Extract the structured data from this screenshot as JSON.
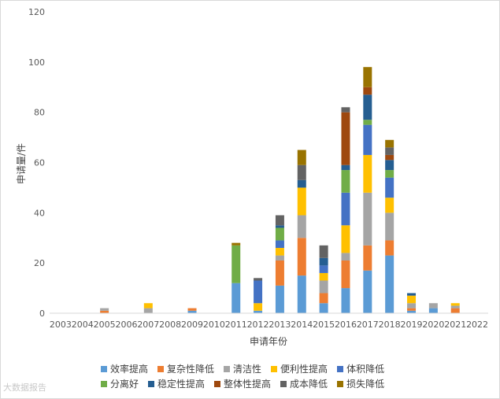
{
  "chart_data": {
    "type": "bar",
    "stacked": true,
    "title": "",
    "xlabel": "申请年份",
    "ylabel": "申请量/件",
    "ylim": [
      0,
      120
    ],
    "yticks": [
      0,
      20,
      40,
      60,
      80,
      100,
      120
    ],
    "grid": false,
    "legend_position": "bottom",
    "categories": [
      "2003",
      "2004",
      "2005",
      "2006",
      "2007",
      "2008",
      "2009",
      "2010",
      "2011",
      "2012",
      "2013",
      "2014",
      "2015",
      "2016",
      "2017",
      "2018",
      "2019",
      "2020",
      "2021",
      "2022"
    ],
    "series": [
      {
        "name": "效率提高",
        "color": "#5b9bd5",
        "values": [
          0,
          0,
          0,
          0,
          0,
          0,
          1,
          0,
          12,
          1,
          11,
          15,
          4,
          10,
          17,
          23,
          1,
          2,
          0,
          0
        ]
      },
      {
        "name": "复杂性降低",
        "color": "#ed7d31",
        "values": [
          0,
          0,
          1,
          0,
          0,
          0,
          1,
          0,
          0,
          0,
          10,
          15,
          4,
          11,
          10,
          6,
          1,
          0,
          2,
          0
        ]
      },
      {
        "name": "清洁性",
        "color": "#a5a5a5",
        "values": [
          0,
          0,
          1,
          0,
          2,
          0,
          0,
          0,
          0,
          0,
          2,
          9,
          5,
          3,
          21,
          11,
          2,
          2,
          1,
          0
        ]
      },
      {
        "name": "便利性提高",
        "color": "#ffc000",
        "values": [
          0,
          0,
          0,
          0,
          2,
          0,
          0,
          0,
          0,
          3,
          3,
          11,
          3,
          11,
          15,
          6,
          3,
          0,
          1,
          0
        ]
      },
      {
        "name": "体积降低",
        "color": "#4472c4",
        "values": [
          0,
          0,
          0,
          0,
          0,
          0,
          0,
          0,
          0,
          9,
          3,
          0,
          3,
          13,
          12,
          8,
          0,
          0,
          0,
          0
        ]
      },
      {
        "name": "分离好",
        "color": "#70ad47",
        "values": [
          0,
          0,
          0,
          0,
          0,
          0,
          0,
          0,
          15,
          0,
          5,
          0,
          0,
          9,
          2,
          3,
          0,
          0,
          0,
          0
        ]
      },
      {
        "name": "稳定性提高",
        "color": "#255e91",
        "values": [
          0,
          0,
          0,
          0,
          0,
          0,
          0,
          0,
          0,
          0,
          1,
          3,
          3,
          2,
          10,
          4,
          1,
          0,
          0,
          0
        ]
      },
      {
        "name": "整体性提高",
        "color": "#9e480e",
        "values": [
          0,
          0,
          0,
          0,
          0,
          0,
          0,
          0,
          0,
          0,
          0,
          0,
          0,
          21,
          3,
          2,
          0,
          0,
          0,
          0
        ]
      },
      {
        "name": "成本降低",
        "color": "#636363",
        "values": [
          0,
          0,
          0,
          0,
          0,
          0,
          0,
          0,
          0,
          1,
          4,
          6,
          5,
          2,
          0,
          3,
          0,
          0,
          0,
          0
        ]
      },
      {
        "name": "损失降低",
        "color": "#997300",
        "values": [
          0,
          0,
          0,
          0,
          0,
          0,
          0,
          0,
          1,
          0,
          0,
          6,
          0,
          0,
          8,
          3,
          0,
          0,
          0,
          0
        ]
      }
    ]
  },
  "watermark": "大数据报告"
}
